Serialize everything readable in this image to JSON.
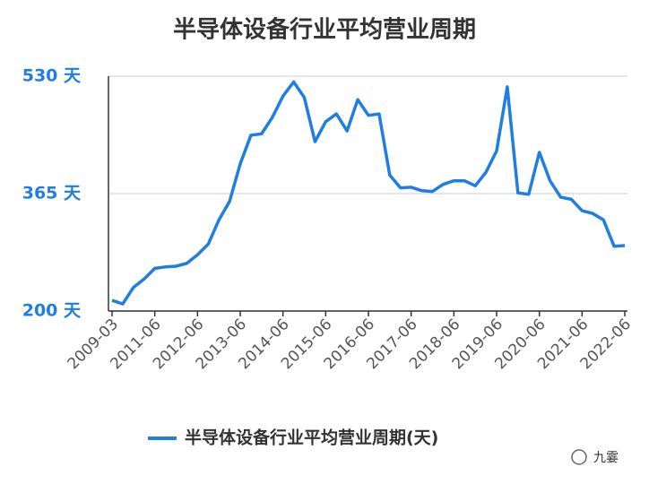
{
  "chart_data": {
    "type": "line",
    "title": "半导体设备行业平均营业周期",
    "categories": [
      "2009-03",
      null,
      null,
      null,
      "2011-06",
      null,
      null,
      null,
      "2012-06",
      null,
      null,
      null,
      "2013-06",
      null,
      null,
      null,
      "2014-06",
      null,
      null,
      null,
      "2015-06",
      null,
      null,
      null,
      "2016-06",
      null,
      null,
      null,
      "2017-06",
      null,
      null,
      null,
      "2018-06",
      null,
      null,
      null,
      "2019-06",
      null,
      null,
      null,
      "2020-06",
      null,
      null,
      null,
      "2021-06",
      null,
      null,
      null,
      "2022-06"
    ],
    "series": [
      {
        "name": "半导体设备行业平均营业周期(天)",
        "color": "#1f7ee0",
        "values": [
          215,
          210,
          233,
          245,
          260,
          262,
          263,
          267,
          279,
          294,
          328,
          354,
          407,
          447,
          449,
          472,
          502,
          522,
          500,
          438,
          466,
          477,
          453,
          497,
          475,
          477,
          391,
          373,
          374,
          369,
          368,
          378,
          383,
          383,
          376,
          395,
          425,
          515,
          366,
          364,
          423,
          383,
          360,
          357,
          341,
          337,
          328,
          291,
          292
        ]
      }
    ],
    "ylim": [
      200,
      530
    ],
    "yticks": [
      {
        "value": 200,
        "label": "200 天"
      },
      {
        "value": 365,
        "label": "365 天"
      },
      {
        "value": 530,
        "label": "530 天"
      }
    ],
    "grid": true,
    "legend": "bottom",
    "watermark": "九霎"
  }
}
